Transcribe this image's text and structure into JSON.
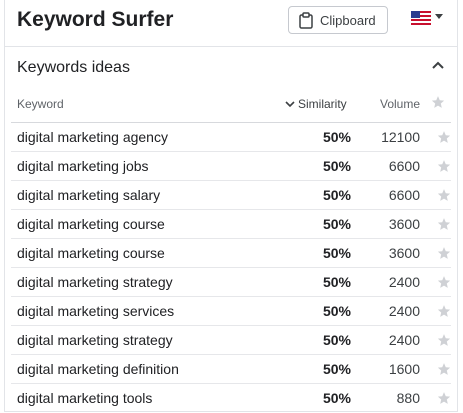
{
  "app": {
    "title": "Keyword Surfer"
  },
  "toolbar": {
    "clipboard_label": "Clipboard",
    "flag_icon": "us-flag-icon"
  },
  "section": {
    "title": "Keywords ideas",
    "toggle_icon": "chevron-up-icon"
  },
  "table": {
    "columns": {
      "keyword": "Keyword",
      "similarity": "Similarity",
      "volume": "Volume"
    },
    "sort": {
      "column": "similarity",
      "direction": "descending"
    },
    "rows": [
      {
        "keyword": "digital marketing agency",
        "similarity": "50%",
        "volume": "12100"
      },
      {
        "keyword": "digital marketing jobs",
        "similarity": "50%",
        "volume": "6600"
      },
      {
        "keyword": "digital marketing salary",
        "similarity": "50%",
        "volume": "6600"
      },
      {
        "keyword": "digital marketing course",
        "similarity": "50%",
        "volume": "3600"
      },
      {
        "keyword": "digital marketing course",
        "similarity": "50%",
        "volume": "3600"
      },
      {
        "keyword": "digital marketing strategy",
        "similarity": "50%",
        "volume": "2400"
      },
      {
        "keyword": "digital marketing services",
        "similarity": "50%",
        "volume": "2400"
      },
      {
        "keyword": "digital marketing strategy",
        "similarity": "50%",
        "volume": "2400"
      },
      {
        "keyword": "digital marketing definition",
        "similarity": "50%",
        "volume": "1600"
      },
      {
        "keyword": "digital marketing tools",
        "similarity": "50%",
        "volume": "880"
      }
    ]
  },
  "colors": {
    "star": "#cfd1d5",
    "border": "#e2e4e8",
    "text": "#202124"
  }
}
